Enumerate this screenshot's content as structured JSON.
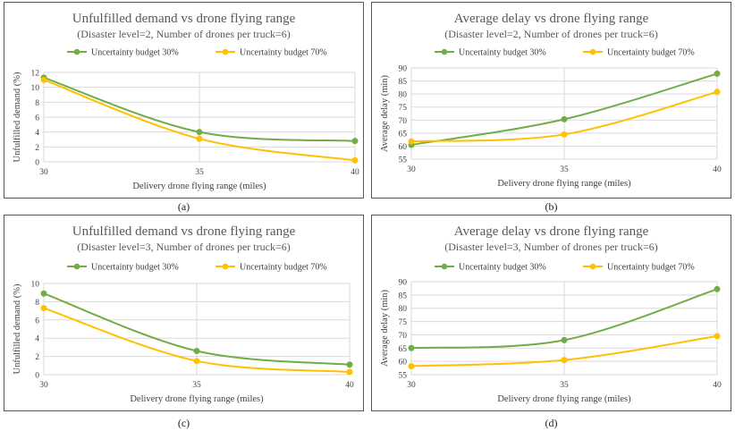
{
  "chart_data": [
    {
      "type": "line",
      "title": "Unfulfilled demand vs drone flying range",
      "subtitle": "(Disaster level=2, Number of drones per truck=6)",
      "xlabel": "Delivery drone flying range (miles)",
      "ylabel": "Unfulfilled demand (%)",
      "x": [
        30,
        35,
        40
      ],
      "x_ticks": [
        "30",
        "35",
        "40"
      ],
      "ylim": [
        0,
        12
      ],
      "y_ticks": [
        "0",
        "2",
        "4",
        "6",
        "8",
        "10",
        "12"
      ],
      "series": [
        {
          "name": "Uncertainty budget 30%",
          "color": "#70ad47",
          "values": [
            11.3,
            4.0,
            2.8
          ]
        },
        {
          "name": "Uncertainty budget 70%",
          "color": "#ffc000",
          "values": [
            11.0,
            3.1,
            0.2
          ]
        }
      ],
      "caption": "(a)"
    },
    {
      "type": "line",
      "title": "Average delay vs drone flying range",
      "subtitle": "(Disaster level=2, Number of drones per truck=6)",
      "xlabel": "Delivery drone flying range (miles)",
      "ylabel": "Average delay (min)",
      "x": [
        30,
        35,
        40
      ],
      "x_ticks": [
        "30",
        "35",
        "40"
      ],
      "ylim": [
        55,
        90
      ],
      "y_ticks": [
        "55",
        "60",
        "65",
        "70",
        "75",
        "80",
        "85",
        "90"
      ],
      "series": [
        {
          "name": "Uncertainty budget 30%",
          "color": "#70ad47",
          "values": [
            60.5,
            70.3,
            87.8
          ]
        },
        {
          "name": "Uncertainty budget 70%",
          "color": "#ffc000",
          "values": [
            61.8,
            64.5,
            80.8
          ]
        }
      ],
      "caption": "(b)"
    },
    {
      "type": "line",
      "title": "Unfulfilled demand vs drone flying range",
      "subtitle": "(Disaster level=3, Number of drones per truck=6)",
      "xlabel": "Delivery drone flying range (miles)",
      "ylabel": "Unfulfilled demand (%)",
      "x": [
        30,
        35,
        40
      ],
      "x_ticks": [
        "30",
        "35",
        "40"
      ],
      "ylim": [
        0,
        10
      ],
      "y_ticks": [
        "0",
        "2",
        "4",
        "6",
        "8",
        "10"
      ],
      "series": [
        {
          "name": "Uncertainty budget 30%",
          "color": "#70ad47",
          "values": [
            8.9,
            2.6,
            1.1
          ]
        },
        {
          "name": "Uncertainty budget 70%",
          "color": "#ffc000",
          "values": [
            7.3,
            1.5,
            0.3
          ]
        }
      ],
      "caption": "(c)"
    },
    {
      "type": "line",
      "title": "Average delay vs drone flying range",
      "subtitle": "(Disaster level=3, Number of drones per truck=6)",
      "xlabel": "Delivery drone flying range (miles)",
      "ylabel": "Average delay (min)",
      "x": [
        30,
        35,
        40
      ],
      "x_ticks": [
        "30",
        "35",
        "40"
      ],
      "ylim": [
        55,
        90
      ],
      "y_ticks": [
        "55",
        "60",
        "65",
        "70",
        "75",
        "80",
        "85",
        "90"
      ],
      "series": [
        {
          "name": "Uncertainty budget 30%",
          "color": "#70ad47",
          "values": [
            65.0,
            68.0,
            87.2
          ]
        },
        {
          "name": "Uncertainty budget 70%",
          "color": "#ffc000",
          "values": [
            58.2,
            60.5,
            69.5
          ]
        }
      ],
      "caption": "(d)"
    }
  ]
}
